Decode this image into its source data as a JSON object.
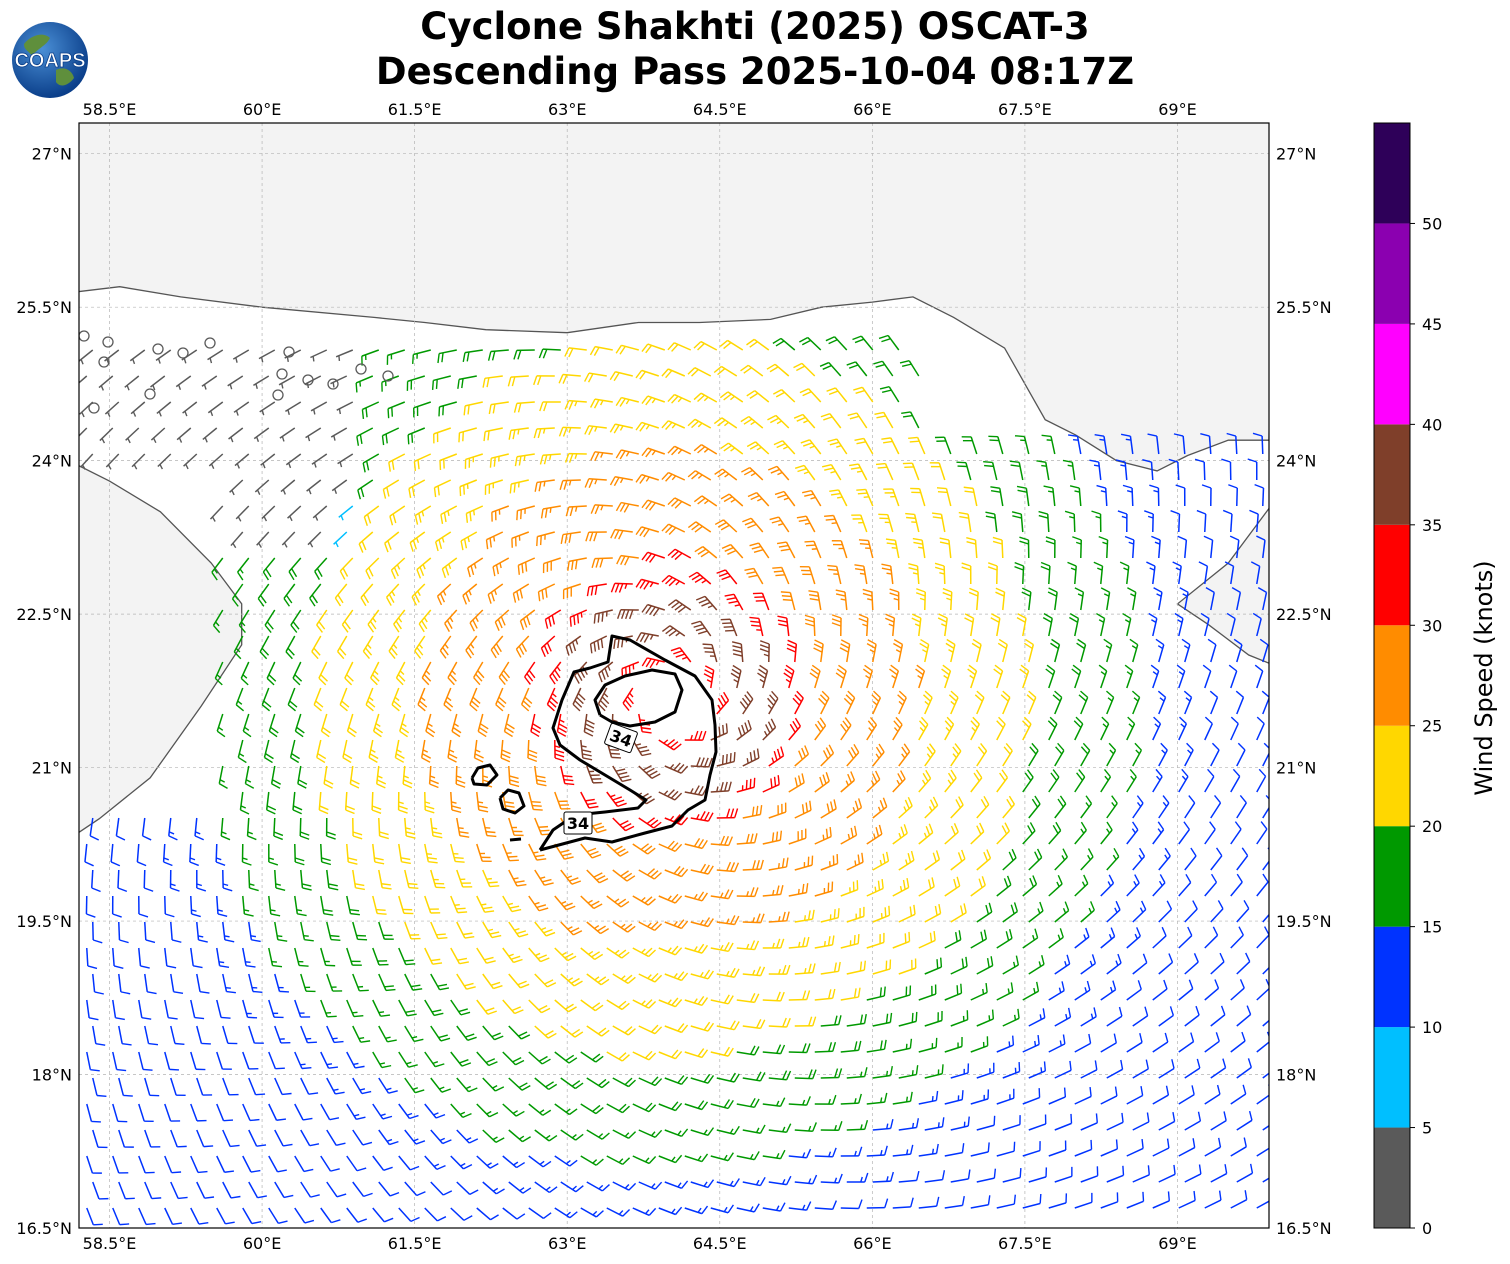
{
  "title": {
    "line1": "Cyclone Shakhti (2025) OSCAT-3",
    "line2": "Descending Pass 2025-10-04 08:17Z"
  },
  "logo": {
    "text": "COAPS"
  },
  "colors": {
    "coast": "#555555",
    "land_bg": "#f3f3f3",
    "grid": "#b4b4b4",
    "contour": "#000000"
  },
  "axes": {
    "lon_ticks": [
      "58.5°E",
      "60°E",
      "61.5°E",
      "63°E",
      "64.5°E",
      "66°E",
      "67.5°E",
      "69°E"
    ],
    "lat_ticks": [
      "27°N",
      "25.5°N",
      "24°N",
      "22.5°N",
      "21°N",
      "19.5°N",
      "18°N",
      "16.5°N"
    ],
    "lon_range": [
      58.2,
      69.9
    ],
    "lat_range": [
      16.5,
      27.3
    ]
  },
  "colorbar": {
    "label": "Wind Speed (knots)",
    "tick_labels": [
      "0",
      "5",
      "10",
      "15",
      "20",
      "25",
      "30",
      "35",
      "40",
      "45",
      "50"
    ],
    "bins": [
      {
        "min": 0,
        "max": 5,
        "color": "#5a5a5a"
      },
      {
        "min": 5,
        "max": 10,
        "color": "#00bfff"
      },
      {
        "min": 10,
        "max": 15,
        "color": "#0033ff"
      },
      {
        "min": 15,
        "max": 20,
        "color": "#009900"
      },
      {
        "min": 20,
        "max": 25,
        "color": "#ffd700"
      },
      {
        "min": 25,
        "max": 30,
        "color": "#ff8c00"
      },
      {
        "min": 30,
        "max": 35,
        "color": "#ff0000"
      },
      {
        "min": 35,
        "max": 40,
        "color": "#7f3f2a"
      },
      {
        "min": 40,
        "max": 45,
        "color": "#ff00ff"
      },
      {
        "min": 45,
        "max": 50,
        "color": "#8b00b0"
      },
      {
        "min": 50,
        "max": 55,
        "color": "#2e0059"
      }
    ]
  },
  "storm": {
    "center_lon": 64.0,
    "center_lat": 21.7,
    "contour_label": "34"
  }
}
